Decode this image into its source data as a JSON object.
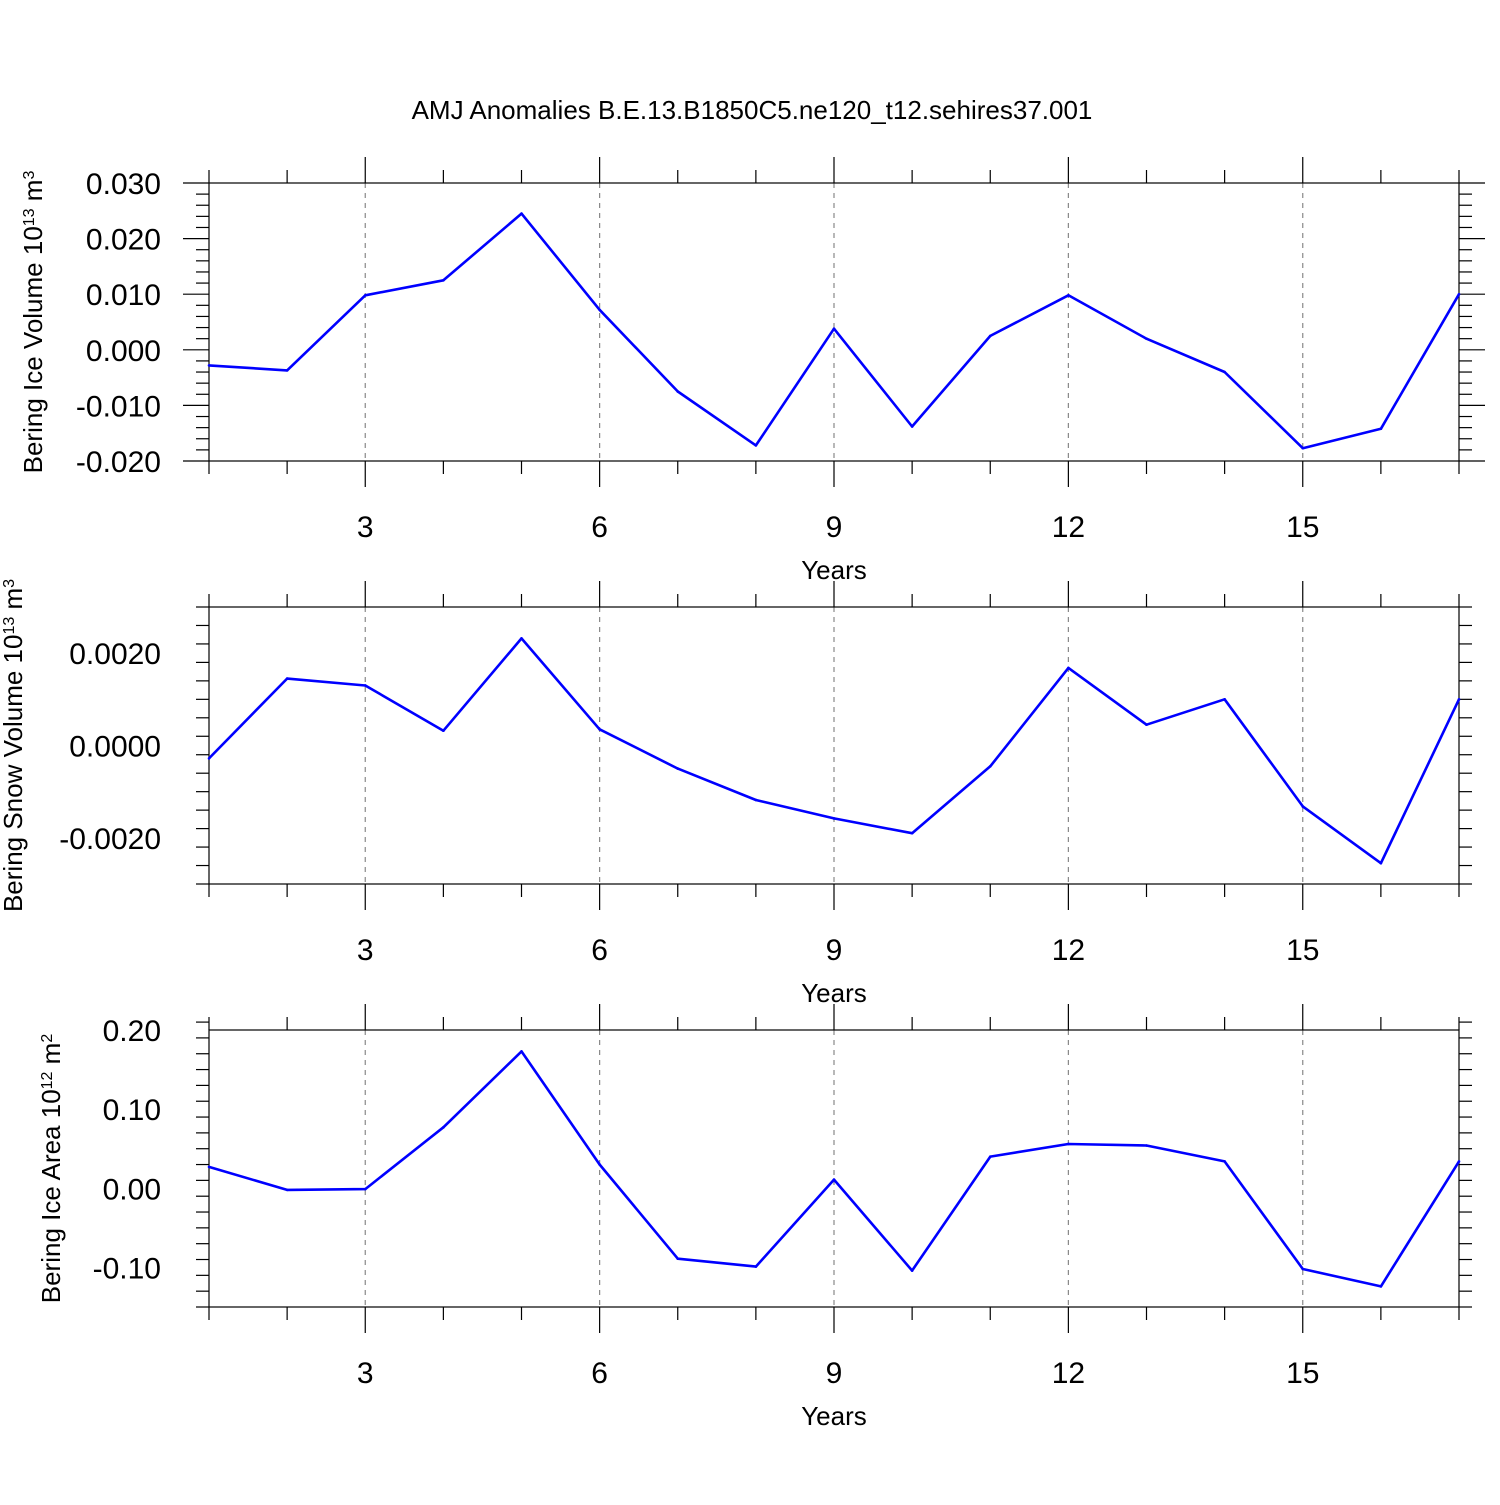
{
  "title": "AMJ Anomalies B.E.13.B1850C5.ne120_t12.sehires37.001",
  "colors": {
    "series": "#0000ff",
    "grid": "#888888",
    "axis": "#000000"
  },
  "chart_data": [
    {
      "type": "line",
      "ylabel": "Bering Ice Volume 10",
      "ylabel_exp": "13",
      "ylabel_unit": " m",
      "ylabel_unit_exp": "3",
      "xlabel": "Years",
      "xlim": [
        1,
        17
      ],
      "ylim": [
        -0.02,
        0.03
      ],
      "x_ticks": [
        3,
        6,
        9,
        12,
        15
      ],
      "x_tick_labels": [
        "3",
        "6",
        "9",
        "12",
        "15"
      ],
      "y_ticks": [
        -0.02,
        -0.01,
        0.0,
        0.01,
        0.02,
        0.03
      ],
      "y_tick_labels": [
        "-0.020",
        "-0.010",
        "0.000",
        "0.010",
        "0.020",
        "0.030"
      ],
      "grid": "vertical dashed at major x ticks",
      "x": [
        1,
        2,
        3,
        4,
        5,
        6,
        7,
        8,
        9,
        10,
        11,
        12,
        13,
        14,
        15,
        16,
        17
      ],
      "values": [
        -0.0028,
        -0.0037,
        0.0098,
        0.0125,
        0.0245,
        0.0072,
        -0.0075,
        -0.0172,
        0.0038,
        -0.0138,
        0.0025,
        0.0098,
        0.002,
        -0.004,
        -0.0177,
        -0.0142,
        0.01
      ]
    },
    {
      "type": "line",
      "ylabel": "Bering Snow Volume 10",
      "ylabel_exp": "13",
      "ylabel_unit": " m",
      "ylabel_unit_exp": "3",
      "xlabel": "Years",
      "xlim": [
        1,
        17
      ],
      "ylim": [
        -0.003,
        0.003
      ],
      "x_ticks": [
        3,
        6,
        9,
        12,
        15
      ],
      "x_tick_labels": [
        "3",
        "6",
        "9",
        "12",
        "15"
      ],
      "y_ticks": [
        -0.002,
        0.0,
        0.002
      ],
      "y_tick_labels": [
        "-0.0020",
        "0.0000",
        "0.0020"
      ],
      "grid": "vertical dashed at major x ticks",
      "x": [
        1,
        2,
        3,
        4,
        5,
        6,
        7,
        8,
        9,
        10,
        11,
        12,
        13,
        14,
        15,
        16,
        17
      ],
      "values": [
        -0.00028,
        0.00145,
        0.0013,
        0.00032,
        0.00232,
        0.00035,
        -0.0005,
        -0.00118,
        -0.00158,
        -0.0019,
        -0.00045,
        0.00168,
        0.00045,
        0.001,
        -0.00132,
        -0.00255,
        0.001
      ]
    },
    {
      "type": "line",
      "ylabel": "Bering Ice Area 10",
      "ylabel_exp": "12",
      "ylabel_unit": " m",
      "ylabel_unit_exp": "2",
      "xlabel": "Years",
      "xlim": [
        1,
        17
      ],
      "ylim": [
        -0.15,
        0.2
      ],
      "x_ticks": [
        3,
        6,
        9,
        12,
        15
      ],
      "x_tick_labels": [
        "3",
        "6",
        "9",
        "12",
        "15"
      ],
      "y_ticks": [
        -0.1,
        0.0,
        0.1,
        0.2
      ],
      "y_tick_labels": [
        "-0.10",
        "0.00",
        "0.10",
        "0.20"
      ],
      "grid": "vertical dashed at major x ticks",
      "x": [
        1,
        2,
        3,
        4,
        5,
        6,
        7,
        8,
        9,
        10,
        11,
        12,
        13,
        14,
        15,
        16,
        17
      ],
      "values": [
        0.027,
        -0.002,
        -0.001,
        0.077,
        0.173,
        0.03,
        -0.089,
        -0.099,
        0.011,
        -0.104,
        0.04,
        0.056,
        0.054,
        0.034,
        -0.102,
        -0.124,
        0.034
      ]
    }
  ]
}
